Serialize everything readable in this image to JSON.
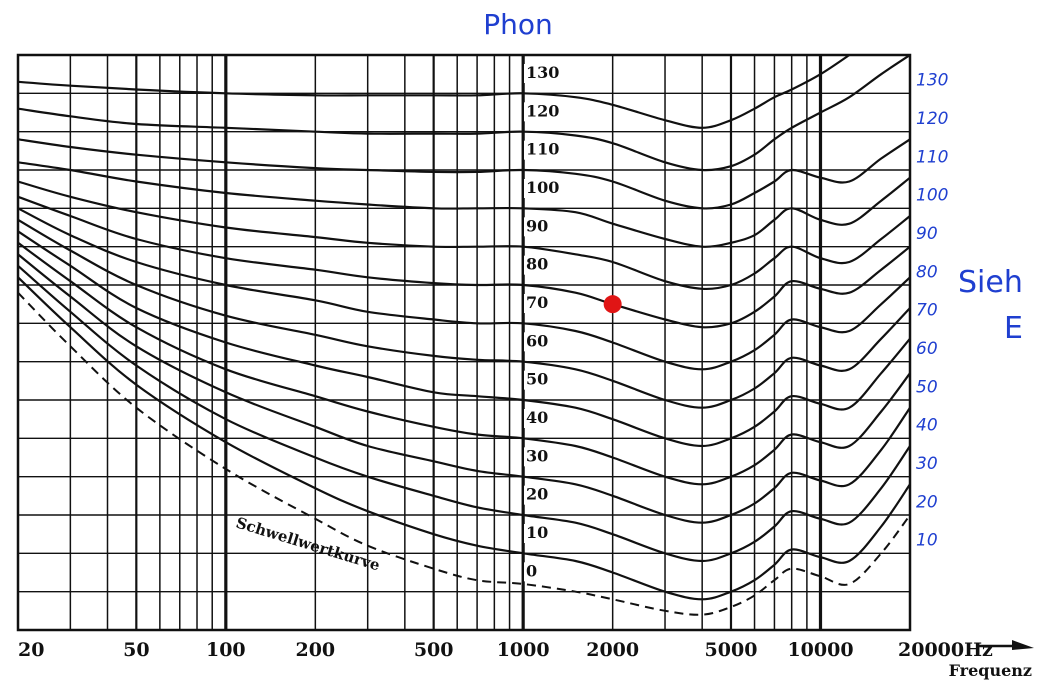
{
  "chart_data": {
    "type": "line",
    "title": "Phon",
    "xlabel": "Frequenz",
    "x_scale": "log",
    "x_range_hz": [
      20,
      20000
    ],
    "y_range_db": [
      -10,
      140
    ],
    "x_tick_labels": [
      "20",
      "50",
      "100",
      "200",
      "500",
      "1000",
      "2000",
      "5000",
      "10000",
      "20000Hz"
    ],
    "grid": true,
    "phon_levels": [
      130,
      120,
      110,
      100,
      90,
      80,
      70,
      60,
      50,
      40,
      30,
      20,
      10
    ],
    "inner_labels": [
      "130",
      "120",
      "110",
      "100",
      "90",
      "80",
      "70",
      "60",
      "50",
      "40",
      "30",
      "20",
      "10",
      "0"
    ],
    "right_labels": [
      "130",
      "120",
      "110",
      "100",
      "90",
      "80",
      "70",
      "60",
      "50",
      "40",
      "30",
      "20",
      "10"
    ],
    "threshold_label": "Schwellwertkurve",
    "margin_text": [
      "Sieh",
      "E"
    ],
    "marker": {
      "frequency_hz": 2000,
      "phon": 75,
      "color": "#e01515"
    },
    "x_frequencies": [
      20,
      30,
      50,
      100,
      200,
      300,
      500,
      700,
      1000,
      1500,
      2000,
      3000,
      4000,
      5000,
      6000,
      7000,
      8000,
      10000,
      12500,
      16000,
      20000
    ],
    "series": [
      {
        "name": "130",
        "values": [
          133,
          132,
          131,
          130,
          129.5,
          129.5,
          129.5,
          129.5,
          130,
          129,
          127,
          123,
          121,
          123,
          126,
          129,
          131,
          135,
          140,
          146,
          150
        ]
      },
      {
        "name": "120",
        "values": [
          126,
          124,
          122,
          121,
          120,
          119.5,
          119.5,
          119.5,
          120,
          119,
          117,
          112,
          110,
          111,
          114,
          118,
          121,
          125,
          129,
          135,
          140
        ]
      },
      {
        "name": "110",
        "values": [
          118,
          116,
          114,
          112,
          110.5,
          110,
          109.5,
          109.5,
          110,
          109,
          107,
          102,
          100,
          101,
          104,
          107,
          110,
          108,
          107,
          113,
          118
        ]
      },
      {
        "name": "100",
        "values": [
          112,
          110,
          107,
          104,
          102,
          101,
          100,
          100,
          100,
          99,
          96,
          92,
          90,
          91,
          93,
          97,
          100,
          97,
          96,
          102,
          108
        ]
      },
      {
        "name": "90",
        "values": [
          107,
          103,
          99,
          95,
          92.5,
          91,
          90,
          90,
          90,
          88,
          86,
          81,
          79,
          80,
          83,
          87,
          90,
          87,
          86,
          92,
          98
        ]
      },
      {
        "name": "80",
        "values": [
          103,
          98,
          92,
          87,
          84,
          82,
          80.5,
          80,
          80,
          78,
          75,
          71,
          69,
          70,
          73,
          77,
          81,
          79,
          78,
          84,
          90
        ]
      },
      {
        "name": "70",
        "values": [
          100,
          93,
          86,
          80,
          76,
          73,
          71,
          70,
          70,
          68,
          65,
          60,
          58,
          60,
          63,
          67,
          71,
          69,
          68,
          75,
          82
        ]
      },
      {
        "name": "60",
        "values": [
          97,
          89,
          80,
          72,
          67,
          64,
          61.5,
          60.5,
          60,
          58,
          55,
          50,
          48,
          50,
          53,
          57,
          61,
          59,
          58,
          66,
          74
        ]
      },
      {
        "name": "50",
        "values": [
          94,
          85,
          74,
          65,
          59,
          56,
          52,
          51,
          50,
          48,
          45,
          40,
          38,
          40,
          43,
          47,
          51,
          49,
          48,
          57,
          66
        ]
      },
      {
        "name": "40",
        "values": [
          91,
          81,
          69,
          58,
          51,
          47,
          43,
          41,
          40,
          38,
          35,
          30,
          28,
          30,
          33,
          37,
          41,
          39,
          38,
          47,
          57
        ]
      },
      {
        "name": "30",
        "values": [
          88,
          77,
          64,
          52,
          43,
          38,
          34,
          31.5,
          30,
          28,
          25,
          20,
          18,
          20,
          23,
          27,
          31,
          29,
          28,
          37,
          48
        ]
      },
      {
        "name": "20",
        "values": [
          85,
          73,
          59,
          45,
          35,
          30,
          25,
          22,
          20,
          18,
          15,
          10,
          8,
          10,
          13,
          17,
          21,
          19,
          18,
          27,
          38
        ]
      },
      {
        "name": "10",
        "values": [
          82,
          69,
          54,
          39,
          27,
          21,
          15,
          12,
          10,
          8,
          5,
          0,
          -2,
          0,
          3,
          7,
          11,
          9,
          8,
          17,
          28
        ]
      }
    ],
    "threshold": {
      "x": [
        20,
        30,
        50,
        100,
        200,
        300,
        500,
        700,
        1000,
        1500,
        2000,
        3000,
        4000,
        5000,
        6000,
        7000,
        8000,
        10000,
        12500,
        16000,
        20000
      ],
      "values": [
        78,
        64,
        48,
        32,
        19,
        12,
        6,
        3,
        2,
        0,
        -2,
        -5,
        -6,
        -4,
        -1,
        3,
        6,
        4,
        2,
        10,
        20
      ]
    }
  }
}
